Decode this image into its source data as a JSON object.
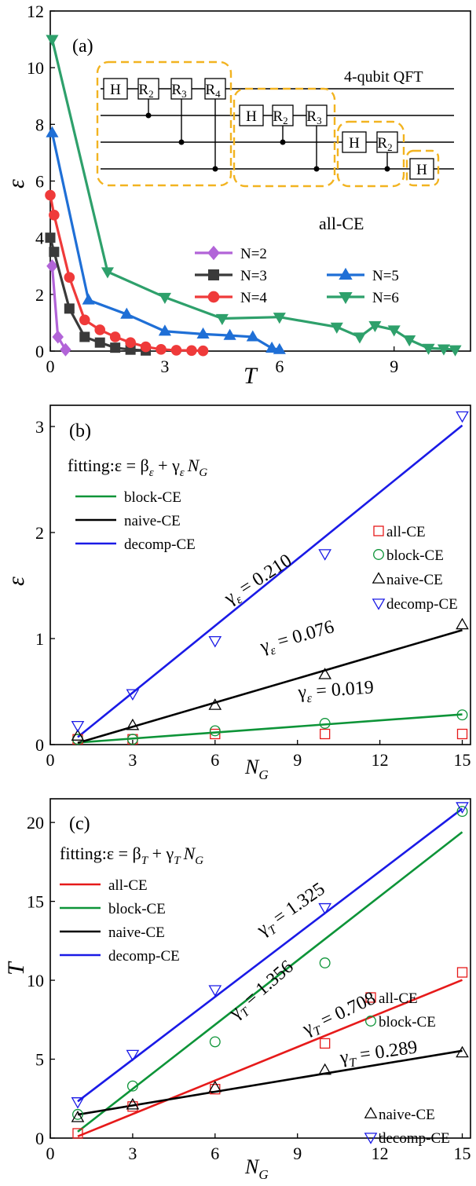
{
  "panels": [
    {
      "label": "(a)",
      "xlabel": "T",
      "ylabel": "ε",
      "xticks": [
        0,
        3,
        6,
        9
      ],
      "yticks": [
        0,
        2,
        4,
        6,
        8,
        10,
        12
      ],
      "inset_title": "4-qubit QFT",
      "inset_note": "all-CE"
    },
    {
      "label": "(b)",
      "xlabel": "N",
      "xlabel_sub": "G",
      "ylabel": "ε",
      "xticks": [
        0,
        3,
        6,
        9,
        12,
        15
      ],
      "yticks": [
        0,
        1,
        2,
        3
      ],
      "fit_title": "fitting:ε = β",
      "fit_title_sub1": "ε",
      "fit_title_mid": " + γ",
      "fit_title_sub2": "ε",
      "fit_title_end": "N",
      "fit_title_sub3": "G",
      "gammas": [
        {
          "text": "γ",
          "sub": "ε",
          "value": " = 0.210",
          "color": "#1a1ae6"
        },
        {
          "text": "γ",
          "sub": "ε",
          "value": " = 0.076",
          "color": "#000000"
        },
        {
          "text": "γ",
          "sub": "ε",
          "value": " = 0.019",
          "color": "#0d9438"
        }
      ]
    },
    {
      "label": "(c)",
      "xlabel": "N",
      "xlabel_sub": "G",
      "ylabel": "T",
      "xticks": [
        0,
        3,
        6,
        9,
        12,
        15
      ],
      "yticks": [
        0,
        5,
        10,
        15,
        20
      ],
      "fit_title": "fitting:ε = β",
      "fit_title_sub1": "T",
      "fit_title_mid": " + γ",
      "fit_title_sub2": "T",
      "fit_title_end": "N",
      "fit_title_sub3": "G",
      "gammas": [
        {
          "text": "γ",
          "sub": "T",
          "value": " = 1.325",
          "color": "#1a1ae6"
        },
        {
          "text": "γ",
          "sub": "T",
          "value": " = 1.356",
          "color": "#0d9438"
        },
        {
          "text": "γ",
          "sub": "T",
          "value": " = 0.708",
          "color": "#e61a1a"
        },
        {
          "text": "γ",
          "sub": "T",
          "value": " = 0.289",
          "color": "#000000"
        }
      ]
    }
  ],
  "colors": {
    "N2": "#b264d8",
    "N3": "#3a3a3a",
    "N4": "#ef3a3a",
    "N5": "#1f6fd6",
    "N6": "#2ea06b",
    "all": "#e61a1a",
    "block": "#0d9438",
    "naive": "#000000",
    "decomp": "#1a1ae6"
  },
  "chart_data": [
    {
      "type": "line",
      "xlabel": "T",
      "ylabel": "ε",
      "xlim": [
        0,
        11
      ],
      "ylim": [
        0,
        12
      ],
      "legend": [
        {
          "name": "N=2",
          "marker": "diamond"
        },
        {
          "name": "N=3",
          "marker": "square"
        },
        {
          "name": "N=4",
          "marker": "circle"
        },
        {
          "name": "N=5",
          "marker": "triangle-up"
        },
        {
          "name": "N=6",
          "marker": "triangle-down"
        }
      ],
      "series": [
        {
          "name": "N=2",
          "marker": "diamond",
          "x": [
            0.05,
            0.2,
            0.4
          ],
          "y": [
            3.0,
            0.5,
            0.05
          ]
        },
        {
          "name": "N=3",
          "marker": "square",
          "x": [
            0.0,
            0.1,
            0.5,
            0.9,
            1.3,
            1.7,
            2.1,
            2.5
          ],
          "y": [
            4.0,
            3.5,
            1.5,
            0.5,
            0.3,
            0.12,
            0.05,
            0.02
          ]
        },
        {
          "name": "N=4",
          "marker": "circle",
          "x": [
            0.0,
            0.1,
            0.5,
            0.9,
            1.3,
            1.7,
            2.1,
            2.5,
            2.9,
            3.3,
            3.7,
            4.0
          ],
          "y": [
            5.5,
            4.8,
            2.6,
            1.1,
            0.75,
            0.5,
            0.3,
            0.15,
            0.06,
            0.03,
            0.02,
            0.01
          ]
        },
        {
          "name": "N=5",
          "marker": "triangle-up",
          "x": [
            0.05,
            1.0,
            2.0,
            3.0,
            4.0,
            4.7,
            5.3,
            5.8,
            6.0
          ],
          "y": [
            7.7,
            1.8,
            1.3,
            0.7,
            0.6,
            0.55,
            0.5,
            0.1,
            0.05
          ]
        },
        {
          "name": "N=6",
          "marker": "triangle-down",
          "x": [
            0.05,
            1.5,
            3.0,
            4.5,
            6.0,
            7.5,
            8.1,
            8.5,
            9.0,
            9.4,
            9.9,
            10.3,
            10.6
          ],
          "y": [
            11.0,
            2.8,
            1.9,
            1.15,
            1.2,
            0.85,
            0.5,
            0.9,
            0.75,
            0.4,
            0.1,
            0.08,
            0.05
          ]
        }
      ]
    },
    {
      "type": "scatter",
      "xlabel": "NG",
      "ylabel": "ε",
      "xlim": [
        0,
        15.3
      ],
      "ylim": [
        0,
        3.2
      ],
      "x": [
        1,
        3,
        6,
        10,
        15
      ],
      "fit_lines": [
        {
          "name": "block-CE",
          "beta": 0.0,
          "gamma": 0.019
        },
        {
          "name": "naive-CE",
          "beta": -0.06,
          "gamma": 0.076
        },
        {
          "name": "decomp-CE",
          "beta": -0.14,
          "gamma": 0.21
        }
      ],
      "series": [
        {
          "name": "all-CE",
          "marker": "square",
          "values": [
            0.05,
            0.05,
            0.1,
            0.1,
            0.1
          ]
        },
        {
          "name": "block-CE",
          "marker": "circle",
          "values": [
            0.05,
            0.05,
            0.13,
            0.2,
            0.28
          ]
        },
        {
          "name": "naive-CE",
          "marker": "triangle-up",
          "values": [
            0.08,
            0.18,
            0.37,
            0.66,
            1.13
          ]
        },
        {
          "name": "decomp-CE",
          "marker": "triangle-down",
          "values": [
            0.18,
            0.48,
            0.98,
            1.8,
            3.1
          ]
        }
      ]
    },
    {
      "type": "scatter",
      "xlabel": "NG",
      "ylabel": "T",
      "xlim": [
        0,
        15.3
      ],
      "ylim": [
        0,
        21.5
      ],
      "x": [
        1,
        3,
        6,
        10,
        15
      ],
      "fit_lines": [
        {
          "name": "all-CE",
          "beta": -0.6,
          "gamma": 0.708
        },
        {
          "name": "block-CE",
          "beta": -0.95,
          "gamma": 1.356
        },
        {
          "name": "naive-CE",
          "beta": 1.2,
          "gamma": 0.289
        },
        {
          "name": "decomp-CE",
          "beta": 1.0,
          "gamma": 1.325
        }
      ],
      "series": [
        {
          "name": "all-CE",
          "marker": "square",
          "values": [
            0.3,
            2.0,
            3.1,
            6.0,
            10.5
          ]
        },
        {
          "name": "block-CE",
          "marker": "circle",
          "values": [
            1.5,
            3.3,
            6.1,
            11.1,
            20.7
          ]
        },
        {
          "name": "naive-CE",
          "marker": "triangle-up",
          "values": [
            1.3,
            2.1,
            3.2,
            4.3,
            5.4
          ]
        },
        {
          "name": "decomp-CE",
          "marker": "triangle-down",
          "values": [
            2.3,
            5.3,
            9.4,
            14.6,
            21.0
          ]
        }
      ]
    }
  ]
}
